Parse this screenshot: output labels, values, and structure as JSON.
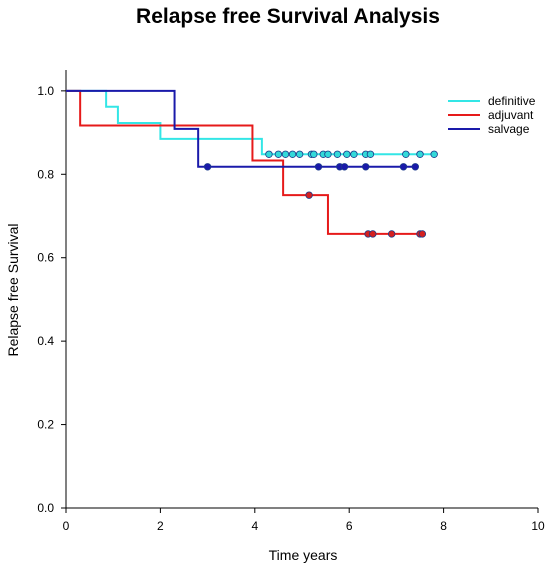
{
  "chart_data": {
    "type": "line",
    "subtype": "kaplan-meier step",
    "title": "Relapse free Survival Analysis",
    "xlabel": "Time years",
    "ylabel": "Relapse free Survival",
    "xlim": [
      0,
      10
    ],
    "ylim": [
      0.0,
      1.05
    ],
    "x_ticks": [
      "0",
      "2",
      "4",
      "6",
      "8",
      "10"
    ],
    "y_ticks": [
      "0.0",
      "0.2",
      "0.4",
      "0.6",
      "0.8",
      "1.0"
    ],
    "grid": false,
    "legend_position": "top-right",
    "series": [
      {
        "name": "definitive",
        "color": "#33e6e6",
        "marker_fill": "#33d9d9",
        "steps": [
          [
            0,
            1.0
          ],
          [
            0.85,
            0.962
          ],
          [
            1.1,
            0.923
          ],
          [
            2.0,
            0.885
          ],
          [
            4.15,
            0.848
          ],
          [
            7.8,
            0.848
          ]
        ],
        "censored": [
          4.3,
          4.5,
          4.65,
          4.8,
          4.95,
          5.2,
          5.25,
          5.45,
          5.55,
          5.75,
          5.95,
          6.1,
          6.35,
          6.45,
          7.2,
          7.5,
          7.8
        ]
      },
      {
        "name": "adjuvant",
        "color": "#e61a1a",
        "marker_fill": "#d42020",
        "steps": [
          [
            0,
            1.0
          ],
          [
            0.3,
            0.917
          ],
          [
            3.95,
            0.833
          ],
          [
            4.6,
            0.75
          ],
          [
            5.55,
            0.657
          ],
          [
            7.6,
            0.657
          ]
        ],
        "censored": [
          5.15,
          6.4,
          6.5,
          6.9,
          7.5,
          7.55
        ]
      },
      {
        "name": "salvage",
        "color": "#1a1aaa",
        "marker_fill": "#1a1aaa",
        "steps": [
          [
            0,
            1.0
          ],
          [
            2.3,
            0.909
          ],
          [
            2.8,
            0.818
          ],
          [
            7.4,
            0.818
          ]
        ],
        "censored": [
          3.0,
          5.35,
          5.8,
          5.9,
          6.35,
          7.15,
          7.4
        ]
      }
    ]
  }
}
